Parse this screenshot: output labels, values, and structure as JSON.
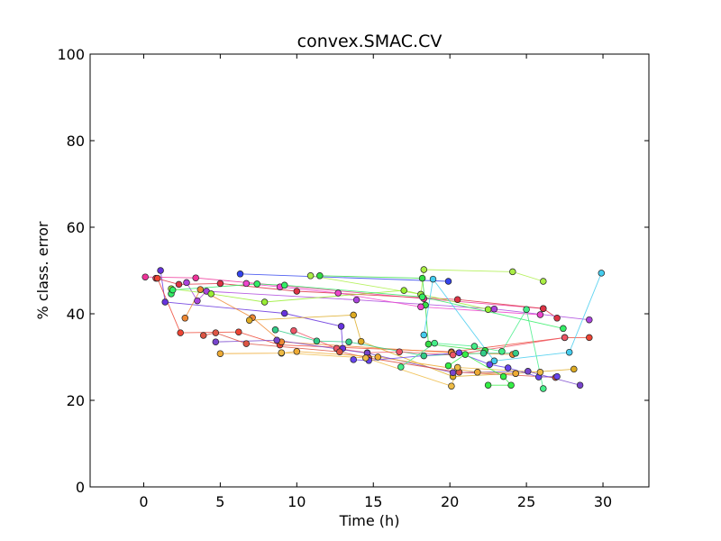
{
  "chart_data": {
    "type": "scatter",
    "title": "convex.SMAC.CV",
    "xlabel": "Time (h)",
    "ylabel": "% class. error",
    "xlim": [
      -3.5,
      33
    ],
    "ylim": [
      0,
      100
    ],
    "xticks": [
      0,
      5,
      10,
      15,
      20,
      25,
      30
    ],
    "yticks": [
      0,
      20,
      40,
      60,
      80,
      100
    ],
    "xtick_labels": [
      "0",
      "5",
      "10",
      "15",
      "20",
      "25",
      "30"
    ],
    "ytick_labels": [
      "0",
      "20",
      "40",
      "60",
      "80",
      "100"
    ],
    "grid": false,
    "legend": "none",
    "series": [
      {
        "color": "#3344ee",
        "points": [
          [
            6.3,
            49.2
          ],
          [
            19.9,
            47.5
          ]
        ]
      },
      {
        "color": "#6633dd",
        "points": [
          [
            1.1,
            50.0
          ],
          [
            1.4,
            42.7
          ],
          [
            9.2,
            40.1
          ],
          [
            12.9,
            37.1
          ],
          [
            13.0,
            32.0
          ]
        ]
      },
      {
        "color": "#33dd44",
        "points": [
          [
            11.5,
            48.8
          ],
          [
            18.2,
            48.2
          ],
          [
            18.4,
            42.0
          ],
          [
            18.6,
            33.0
          ],
          [
            22.3,
            31.5
          ]
        ]
      },
      {
        "color": "#aaee44",
        "points": [
          [
            10.9,
            48.8
          ],
          [
            18.1,
            44.5
          ],
          [
            18.3,
            50.2
          ],
          [
            24.1,
            49.7
          ],
          [
            26.1,
            47.5
          ]
        ]
      },
      {
        "color": "#ee3399",
        "points": [
          [
            0.1,
            48.5
          ],
          [
            3.4,
            48.3
          ],
          [
            18.3,
            43.5
          ],
          [
            26.1,
            41.2
          ]
        ]
      },
      {
        "color": "#dd3344",
        "points": [
          [
            0.8,
            48.2
          ],
          [
            2.3,
            46.8
          ],
          [
            5.0,
            47.0
          ],
          [
            10.0,
            45.2
          ],
          [
            20.5,
            43.3
          ],
          [
            26.1,
            41.2
          ],
          [
            27.0,
            39.0
          ]
        ]
      },
      {
        "color": "#aa44dd",
        "points": [
          [
            2.8,
            47.2
          ],
          [
            3.5,
            43.0
          ],
          [
            4.1,
            45.2
          ],
          [
            13.9,
            43.2
          ],
          [
            22.9,
            41.1
          ],
          [
            29.1,
            38.6
          ]
        ]
      },
      {
        "color": "#ee44cc",
        "points": [
          [
            6.7,
            47.0
          ],
          [
            8.9,
            46.2
          ],
          [
            12.7,
            44.8
          ],
          [
            18.1,
            41.6
          ],
          [
            25.9,
            39.8
          ]
        ]
      },
      {
        "color": "#99ee33",
        "points": [
          [
            1.8,
            45.8
          ],
          [
            4.4,
            44.6
          ],
          [
            7.9,
            42.7
          ],
          [
            17.0,
            45.4
          ],
          [
            22.5,
            41.0
          ]
        ]
      },
      {
        "color": "#33ee66",
        "points": [
          [
            1.8,
            44.6
          ],
          [
            1.9,
            45.5
          ],
          [
            7.4,
            46.9
          ],
          [
            9.2,
            46.6
          ],
          [
            18.2,
            43.9
          ],
          [
            27.4,
            36.6
          ]
        ]
      },
      {
        "color": "#ee4433",
        "points": [
          [
            0.9,
            48.2
          ],
          [
            2.4,
            35.6
          ],
          [
            6.2,
            35.8
          ],
          [
            8.9,
            32.8
          ],
          [
            20.1,
            31.2
          ],
          [
            27.5,
            34.5
          ],
          [
            29.1,
            34.5
          ]
        ]
      },
      {
        "color": "#ee8833",
        "points": [
          [
            2.7,
            39.0
          ],
          [
            3.7,
            45.6
          ],
          [
            7.1,
            39.1
          ],
          [
            9.0,
            33.5
          ],
          [
            20.1,
            31.0
          ],
          [
            24.1,
            30.6
          ]
        ]
      },
      {
        "color": "#ddaa22",
        "points": [
          [
            6.9,
            38.5
          ],
          [
            13.7,
            39.7
          ],
          [
            14.2,
            33.6
          ],
          [
            20.2,
            25.5
          ],
          [
            24.3,
            26.2
          ],
          [
            28.1,
            27.2
          ]
        ]
      },
      {
        "color": "#33cc88",
        "points": [
          [
            8.6,
            36.3
          ],
          [
            11.3,
            33.7
          ],
          [
            13.4,
            33.5
          ],
          [
            18.3,
            30.3
          ],
          [
            22.2,
            30.9
          ],
          [
            24.3,
            30.9
          ]
        ]
      },
      {
        "color": "#ee5566",
        "points": [
          [
            9.8,
            36.1
          ],
          [
            12.6,
            32.0
          ],
          [
            14.6,
            31.0
          ],
          [
            16.7,
            31.2
          ],
          [
            20.2,
            30.5
          ],
          [
            27.5,
            34.5
          ]
        ]
      },
      {
        "color": "#7744cc",
        "points": [
          [
            4.7,
            33.5
          ],
          [
            8.7,
            33.9
          ],
          [
            14.6,
            30.9
          ],
          [
            20.2,
            26.4
          ],
          [
            25.1,
            26.7
          ],
          [
            28.5,
            23.5
          ]
        ]
      },
      {
        "color": "#dd5544",
        "points": [
          [
            3.9,
            35.0
          ],
          [
            4.7,
            35.6
          ],
          [
            6.7,
            33.1
          ],
          [
            12.8,
            31.2
          ],
          [
            14.7,
            29.8
          ],
          [
            20.6,
            26.5
          ],
          [
            26.9,
            25.3
          ]
        ]
      },
      {
        "color": "#eeaa33",
        "points": [
          [
            5.0,
            30.8
          ],
          [
            9.0,
            30.9
          ],
          [
            10.0,
            31.3
          ],
          [
            15.3,
            30.0
          ],
          [
            21.8,
            26.5
          ],
          [
            24.3,
            26.2
          ]
        ]
      },
      {
        "color": "#44ccee",
        "points": [
          [
            18.3,
            35.1
          ],
          [
            18.9,
            48.0
          ],
          [
            22.9,
            29.1
          ],
          [
            27.8,
            31.1
          ],
          [
            29.9,
            49.4
          ]
        ]
      },
      {
        "color": "#6644ee",
        "points": [
          [
            13.7,
            29.4
          ],
          [
            14.7,
            29.2
          ],
          [
            20.6,
            31.0
          ],
          [
            22.6,
            28.3
          ],
          [
            23.8,
            27.5
          ],
          [
            25.8,
            25.4
          ],
          [
            27.0,
            25.5
          ]
        ]
      },
      {
        "color": "#44ee88",
        "points": [
          [
            16.8,
            27.7
          ],
          [
            19.0,
            33.2
          ],
          [
            21.6,
            32.5
          ],
          [
            23.4,
            31.3
          ],
          [
            25.0,
            41.0
          ],
          [
            26.1,
            22.7
          ]
        ]
      },
      {
        "color": "#eebb44",
        "points": [
          [
            9.0,
            31.0
          ],
          [
            14.5,
            29.8
          ],
          [
            20.1,
            23.3
          ],
          [
            20.5,
            27.6
          ],
          [
            25.9,
            26.5
          ]
        ]
      },
      {
        "color": "#33ee44",
        "points": [
          [
            19.9,
            28.0
          ],
          [
            21.0,
            30.6
          ],
          [
            23.5,
            25.5
          ],
          [
            24.0,
            23.5
          ],
          [
            22.5,
            23.5
          ]
        ]
      }
    ]
  }
}
